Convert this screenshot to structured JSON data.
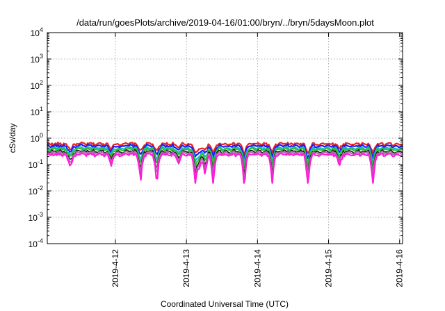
{
  "chart_data": {
    "type": "line",
    "title": "/data/run/goesPlots/archive/2019-04-16/01:00/bryn/../bryn/5daysMoon.plot",
    "xlabel": "Coordinated Universal Time (UTC)",
    "ylabel": "cSv/day",
    "y_scale": "log",
    "ylim_exponents": [
      -4,
      4
    ],
    "y_tick_labels": [
      {
        "base": "10",
        "exp": "4",
        "value": 10000
      },
      {
        "base": "10",
        "exp": "3",
        "value": 1000
      },
      {
        "base": "10",
        "exp": "2",
        "value": 100
      },
      {
        "base": "10",
        "exp": "1",
        "value": 10
      },
      {
        "base": "10",
        "exp": "0",
        "value": 1
      },
      {
        "base": "10",
        "exp": "-1",
        "value": 0.1
      },
      {
        "base": "10",
        "exp": "-2",
        "value": 0.01
      },
      {
        "base": "10",
        "exp": "-3",
        "value": 0.001
      },
      {
        "base": "10",
        "exp": "-4",
        "value": 0.0001
      }
    ],
    "x_range_days": [
      "2019-04-11 01:00",
      "2019-04-16 01:00"
    ],
    "x_tick_labels": [
      {
        "label": "2019-4-12",
        "date": "2019-04-12 00:00"
      },
      {
        "label": "2019-4-13",
        "date": "2019-04-13 00:00"
      },
      {
        "label": "2019-4-14",
        "date": "2019-04-14 00:00"
      },
      {
        "label": "2019-4-15",
        "date": "2019-04-15 00:00"
      },
      {
        "label": "2019-4-16",
        "date": "2019-04-16 00:00"
      }
    ],
    "grid": true,
    "legend": "none",
    "series": [
      {
        "color": "#e8231c",
        "base_value": 0.6
      },
      {
        "color": "#1a1aff",
        "base_value": 0.5
      },
      {
        "color": "#17b8c8",
        "base_value": 0.41
      },
      {
        "color": "#2fc02f",
        "base_value": 0.37
      },
      {
        "color": "#111111",
        "base_value": 0.31
      },
      {
        "color": "#b36bb3",
        "base_value": 0.275
      },
      {
        "color": "#ff1ad9",
        "base_value": 0.235
      }
    ],
    "dips": [
      {
        "date": "2019-04-11 08:30",
        "depth": 0.45
      },
      {
        "date": "2019-04-11 09:30",
        "depth": 0.25
      },
      {
        "date": "2019-04-11 22:40",
        "depth": 0.45
      },
      {
        "date": "2019-04-12 08:30",
        "depth": 0.75
      },
      {
        "date": "2019-04-12 14:00",
        "depth": 0.8
      },
      {
        "date": "2019-04-12 21:20",
        "depth": 0.45
      },
      {
        "date": "2019-04-13 03:00",
        "depth": 0.8
      },
      {
        "date": "2019-04-13 04:20",
        "depth": 0.6
      },
      {
        "date": "2019-04-13 06:20",
        "depth": 0.7
      },
      {
        "date": "2019-04-13 09:00",
        "depth": 0.85
      },
      {
        "date": "2019-04-13 19:30",
        "depth": 0.85
      },
      {
        "date": "2019-04-14 05:00",
        "depth": 0.8
      },
      {
        "date": "2019-04-14 17:00",
        "depth": 0.85
      },
      {
        "date": "2019-04-15 03:40",
        "depth": 0.5
      },
      {
        "date": "2019-04-15 15:00",
        "depth": 0.85
      }
    ]
  }
}
